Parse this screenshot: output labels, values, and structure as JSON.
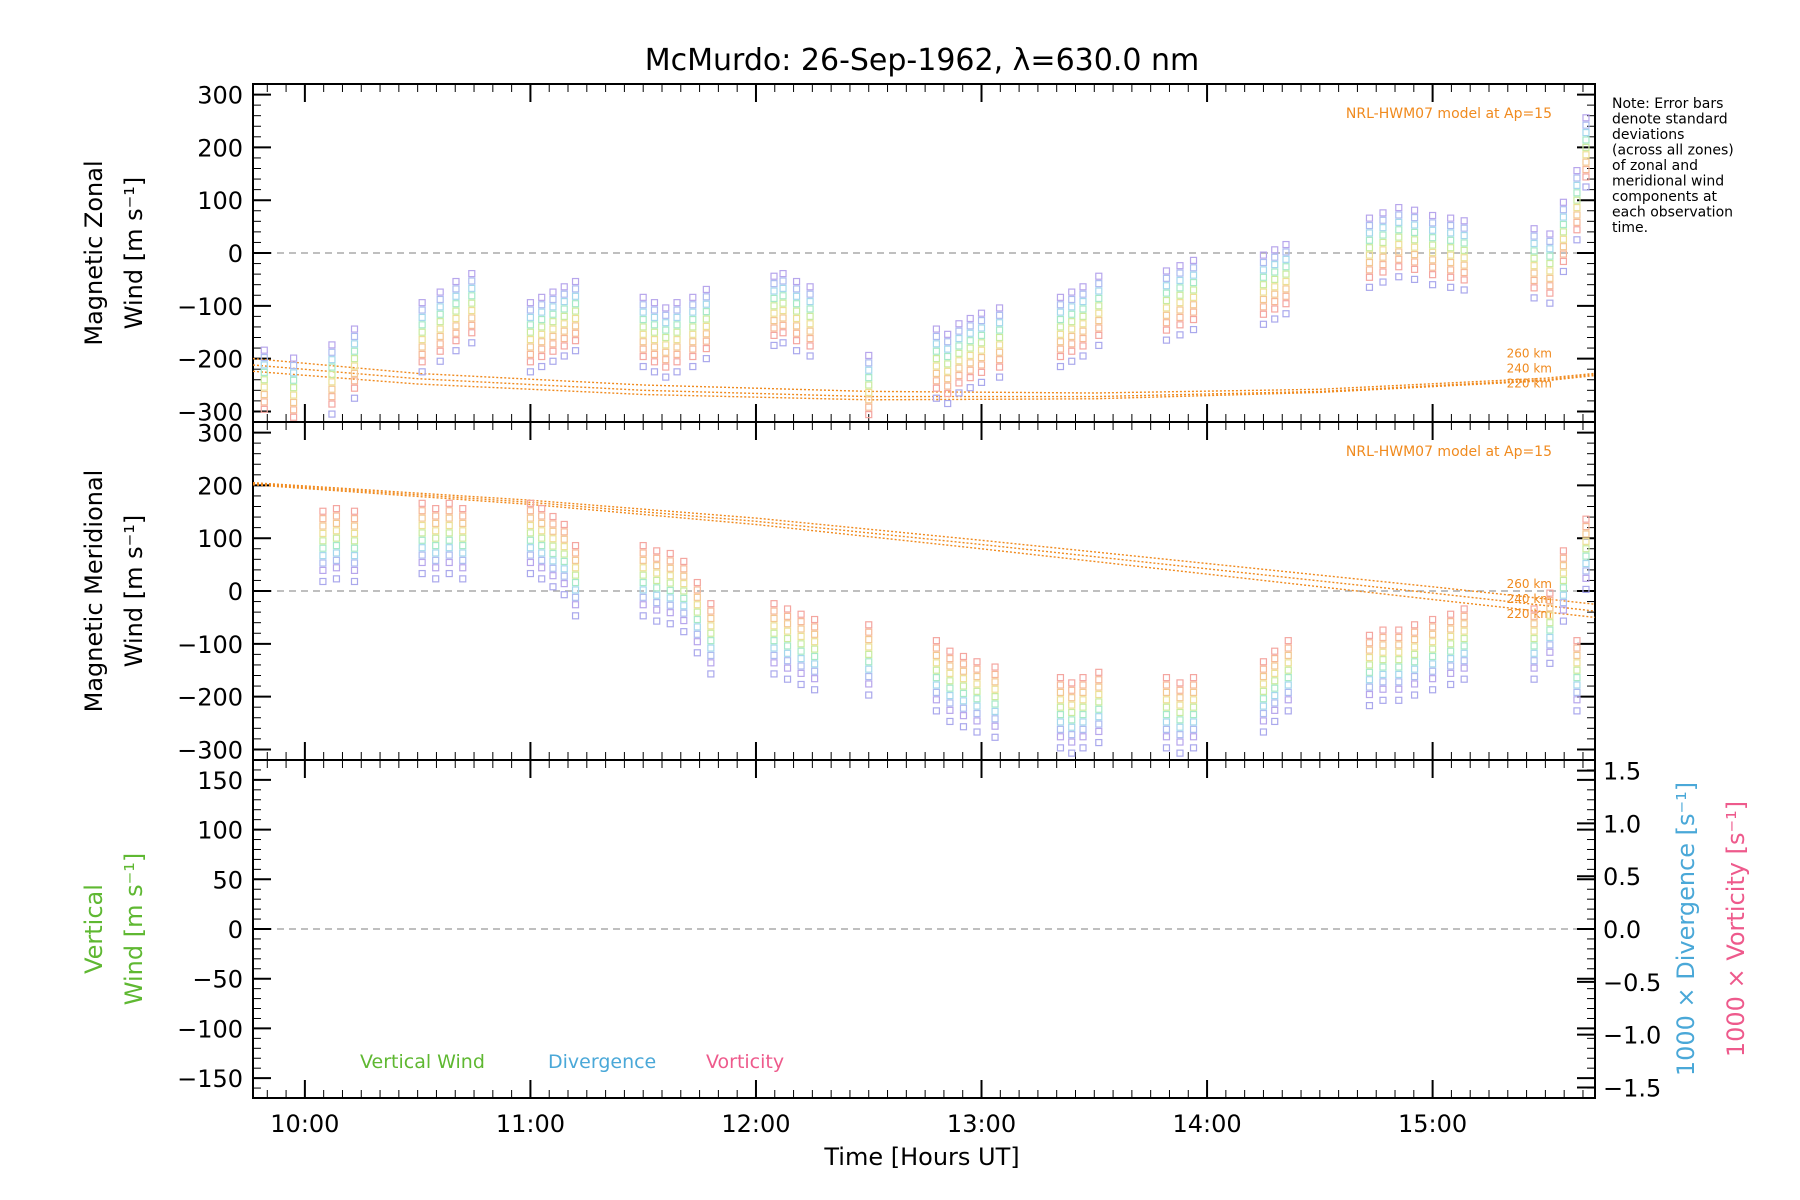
{
  "title": "McMurdo: 26-Sep-1962, λ=630.0 nm",
  "note": [
    "Note: Error bars",
    "denote standard",
    "deviations",
    "(across all zones)",
    "of zonal and",
    "meridional wind",
    "components at",
    "each observation",
    "time."
  ],
  "model_label": "NRL-HWM07 model at Ap=15",
  "xlabel": "Time [Hours UT]",
  "colors": {
    "axis": "#000000",
    "model": "#f08a1e",
    "vertical": "#5fb832",
    "divergence": "#4aa8d8",
    "vorticity": "#ee5a8c",
    "zero_line": "#999999"
  },
  "legend": {
    "vertical": "Vertical Wind",
    "divergence": "Divergence",
    "vorticity": "Vorticity"
  },
  "chart_data": [
    {
      "type": "scatter",
      "panel": "zonal",
      "ylabel": [
        "Magnetic Zonal",
        "Wind [m s⁻¹]"
      ],
      "xlim": [
        9.77,
        15.72
      ],
      "ylim": [
        -320,
        320
      ],
      "x_ticks": [
        "10:00",
        "11:00",
        "12:00",
        "13:00",
        "14:00",
        "15:00"
      ],
      "y_ticks": [
        -300,
        -200,
        -100,
        0,
        100,
        200,
        300
      ],
      "model_levels": [
        "260 km",
        "240 km",
        "220 km"
      ],
      "model_series": [
        {
          "x": [
            9.77,
            10.5,
            11.5,
            12.5,
            13.5,
            14.5,
            15.5,
            15.72
          ],
          "y": [
            -200,
            -228,
            -250,
            -262,
            -265,
            -258,
            -237,
            -228
          ]
        },
        {
          "x": [
            9.77,
            10.5,
            11.5,
            12.5,
            13.5,
            14.5,
            15.5,
            15.72
          ],
          "y": [
            -212,
            -238,
            -260,
            -272,
            -272,
            -262,
            -240,
            -230
          ]
        },
        {
          "x": [
            9.77,
            10.5,
            11.5,
            12.5,
            13.5,
            14.5,
            15.5,
            15.72
          ],
          "y": [
            -224,
            -248,
            -268,
            -278,
            -276,
            -264,
            -242,
            -232
          ]
        }
      ],
      "observations": [
        {
          "t": 9.82,
          "c": -240
        },
        {
          "t": 9.95,
          "c": -255
        },
        {
          "t": 10.12,
          "c": -230
        },
        {
          "t": 10.22,
          "c": -200
        },
        {
          "t": 10.52,
          "c": -150
        },
        {
          "t": 10.6,
          "c": -130
        },
        {
          "t": 10.67,
          "c": -110
        },
        {
          "t": 10.74,
          "c": -95
        },
        {
          "t": 11.0,
          "c": -150
        },
        {
          "t": 11.05,
          "c": -140
        },
        {
          "t": 11.1,
          "c": -130
        },
        {
          "t": 11.15,
          "c": -120
        },
        {
          "t": 11.2,
          "c": -110
        },
        {
          "t": 11.5,
          "c": -140
        },
        {
          "t": 11.55,
          "c": -150
        },
        {
          "t": 11.6,
          "c": -160
        },
        {
          "t": 11.65,
          "c": -150
        },
        {
          "t": 11.72,
          "c": -140
        },
        {
          "t": 11.78,
          "c": -125
        },
        {
          "t": 12.08,
          "c": -100
        },
        {
          "t": 12.12,
          "c": -95
        },
        {
          "t": 12.18,
          "c": -110
        },
        {
          "t": 12.24,
          "c": -120
        },
        {
          "t": 12.5,
          "c": -250
        },
        {
          "t": 12.8,
          "c": -200
        },
        {
          "t": 12.85,
          "c": -210
        },
        {
          "t": 12.9,
          "c": -190
        },
        {
          "t": 12.95,
          "c": -180
        },
        {
          "t": 13.0,
          "c": -170
        },
        {
          "t": 13.08,
          "c": -160
        },
        {
          "t": 13.35,
          "c": -140
        },
        {
          "t": 13.4,
          "c": -130
        },
        {
          "t": 13.45,
          "c": -120
        },
        {
          "t": 13.52,
          "c": -100
        },
        {
          "t": 13.82,
          "c": -90
        },
        {
          "t": 13.88,
          "c": -80
        },
        {
          "t": 13.94,
          "c": -70
        },
        {
          "t": 14.25,
          "c": -60
        },
        {
          "t": 14.3,
          "c": -50
        },
        {
          "t": 14.35,
          "c": -40
        },
        {
          "t": 14.72,
          "c": 10
        },
        {
          "t": 14.78,
          "c": 20
        },
        {
          "t": 14.85,
          "c": 30
        },
        {
          "t": 14.92,
          "c": 25
        },
        {
          "t": 15.0,
          "c": 15
        },
        {
          "t": 15.08,
          "c": 10
        },
        {
          "t": 15.14,
          "c": 5
        },
        {
          "t": 15.45,
          "c": -10
        },
        {
          "t": 15.52,
          "c": -20
        },
        {
          "t": 15.58,
          "c": 40
        },
        {
          "t": 15.64,
          "c": 100
        },
        {
          "t": 15.68,
          "c": 200
        }
      ]
    },
    {
      "type": "scatter",
      "panel": "meridional",
      "ylabel": [
        "Magnetic Meridional",
        "Wind [m s⁻¹]"
      ],
      "xlim": [
        9.77,
        15.72
      ],
      "ylim": [
        -320,
        320
      ],
      "x_ticks": [
        "10:00",
        "11:00",
        "12:00",
        "13:00",
        "14:00",
        "15:00"
      ],
      "y_ticks": [
        -300,
        -200,
        -100,
        0,
        100,
        200,
        300
      ],
      "model_levels": [
        "260 km",
        "240 km",
        "220 km"
      ],
      "model_series": [
        {
          "x": [
            9.77,
            11.0,
            12.0,
            13.0,
            14.0,
            15.0,
            15.72
          ],
          "y": [
            205,
            172,
            138,
            96,
            52,
            8,
            -25
          ]
        },
        {
          "x": [
            9.77,
            11.0,
            12.0,
            13.0,
            14.0,
            15.0,
            15.72
          ],
          "y": [
            203,
            168,
            132,
            88,
            42,
            -4,
            -38
          ]
        },
        {
          "x": [
            9.77,
            11.0,
            12.0,
            13.0,
            14.0,
            15.0,
            15.72
          ],
          "y": [
            201,
            164,
            126,
            80,
            32,
            -16,
            -50
          ]
        }
      ],
      "observations": [
        {
          "t": 10.08,
          "c": 95
        },
        {
          "t": 10.14,
          "c": 100
        },
        {
          "t": 10.22,
          "c": 95
        },
        {
          "t": 10.52,
          "c": 110
        },
        {
          "t": 10.58,
          "c": 100
        },
        {
          "t": 10.64,
          "c": 110
        },
        {
          "t": 10.7,
          "c": 100
        },
        {
          "t": 11.0,
          "c": 110
        },
        {
          "t": 11.05,
          "c": 100
        },
        {
          "t": 11.1,
          "c": 85
        },
        {
          "t": 11.15,
          "c": 70
        },
        {
          "t": 11.2,
          "c": 30
        },
        {
          "t": 11.5,
          "c": 30
        },
        {
          "t": 11.56,
          "c": 20
        },
        {
          "t": 11.62,
          "c": 15
        },
        {
          "t": 11.68,
          "c": 0
        },
        {
          "t": 11.74,
          "c": -40
        },
        {
          "t": 11.8,
          "c": -80
        },
        {
          "t": 12.08,
          "c": -80
        },
        {
          "t": 12.14,
          "c": -90
        },
        {
          "t": 12.2,
          "c": -100
        },
        {
          "t": 12.26,
          "c": -110
        },
        {
          "t": 12.5,
          "c": -120
        },
        {
          "t": 12.8,
          "c": -150
        },
        {
          "t": 12.86,
          "c": -170
        },
        {
          "t": 12.92,
          "c": -180
        },
        {
          "t": 12.98,
          "c": -190
        },
        {
          "t": 13.06,
          "c": -200
        },
        {
          "t": 13.35,
          "c": -220
        },
        {
          "t": 13.4,
          "c": -230
        },
        {
          "t": 13.45,
          "c": -220
        },
        {
          "t": 13.52,
          "c": -210
        },
        {
          "t": 13.82,
          "c": -220
        },
        {
          "t": 13.88,
          "c": -230
        },
        {
          "t": 13.94,
          "c": -220
        },
        {
          "t": 14.25,
          "c": -190
        },
        {
          "t": 14.3,
          "c": -170
        },
        {
          "t": 14.36,
          "c": -150
        },
        {
          "t": 14.72,
          "c": -140
        },
        {
          "t": 14.78,
          "c": -130
        },
        {
          "t": 14.85,
          "c": -130
        },
        {
          "t": 14.92,
          "c": -120
        },
        {
          "t": 15.0,
          "c": -110
        },
        {
          "t": 15.08,
          "c": -100
        },
        {
          "t": 15.14,
          "c": -90
        },
        {
          "t": 15.45,
          "c": -90
        },
        {
          "t": 15.52,
          "c": -60
        },
        {
          "t": 15.58,
          "c": 20
        },
        {
          "t": 15.64,
          "c": -150
        },
        {
          "t": 15.68,
          "c": 80
        }
      ]
    },
    {
      "type": "line",
      "panel": "vertical",
      "ylabel": [
        "Vertical",
        "Wind [m s⁻¹]"
      ],
      "y2label_divergence": "1000 × Divergence [s⁻¹]",
      "y2label_vorticity": "1000 × Vorticity [s⁻¹]",
      "xlim": [
        9.77,
        15.72
      ],
      "ylim": [
        -170,
        170
      ],
      "y2lim": [
        -1.6,
        1.6
      ],
      "x_ticks": [
        "10:00",
        "11:00",
        "12:00",
        "13:00",
        "14:00",
        "15:00"
      ],
      "y_ticks": [
        -150,
        -100,
        -50,
        0,
        50,
        100,
        150
      ],
      "y2_ticks": [
        "−1.5",
        "−1.0",
        "−0.5",
        "0.0",
        "0.5",
        "1.0",
        "1.5"
      ],
      "series": []
    }
  ]
}
